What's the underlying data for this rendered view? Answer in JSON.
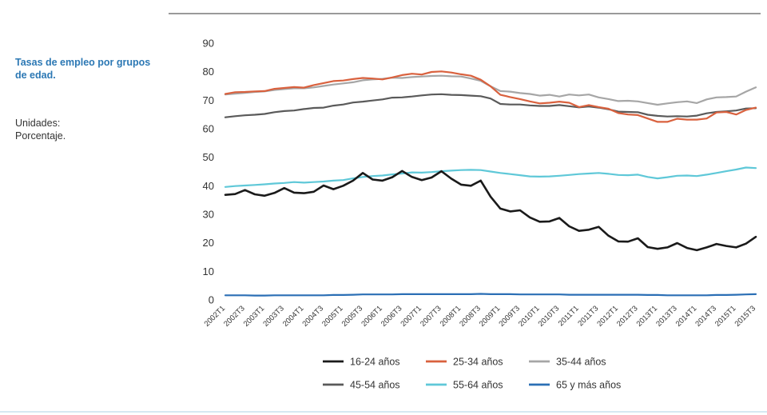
{
  "side": {
    "title": "Tasas de empleo por grupos de edad.",
    "units_label": "Unidades:",
    "units_value": "Porcentaje."
  },
  "chart_data": {
    "type": "line",
    "title": "",
    "xlabel": "",
    "ylabel": "",
    "ylim": [
      0,
      90
    ],
    "yticks": [
      0,
      10,
      20,
      30,
      40,
      50,
      60,
      70,
      80,
      90
    ],
    "grid": false,
    "legend_position": "bottom",
    "x": [
      "2002T1",
      "2002T2",
      "2002T3",
      "2002T4",
      "2003T1",
      "2003T2",
      "2003T3",
      "2003T4",
      "2004T1",
      "2004T2",
      "2004T3",
      "2004T4",
      "2005T1",
      "2005T2",
      "2005T3",
      "2005T4",
      "2006T1",
      "2006T2",
      "2006T3",
      "2006T4",
      "2007T1",
      "2007T2",
      "2007T3",
      "2007T4",
      "2008T1",
      "2008T2",
      "2008T3",
      "2008T4",
      "2009T1",
      "2009T2",
      "2009T3",
      "2009T4",
      "2010T1",
      "2010T2",
      "2010T3",
      "2010T4",
      "2011T1",
      "2011T2",
      "2011T3",
      "2011T4",
      "2012T1",
      "2012T2",
      "2012T3",
      "2012T4",
      "2013T1",
      "2013T2",
      "2013T3",
      "2013T4",
      "2014T1",
      "2014T2",
      "2014T3",
      "2014T4",
      "2015T1",
      "2015T2",
      "2015T3"
    ],
    "x_tick_labels": [
      "2002T1",
      "2002T3",
      "2003T1",
      "2003T3",
      "2004T1",
      "2004T3",
      "2005T1",
      "2005T3",
      "2006T1",
      "2006T3",
      "2007T1",
      "2007T3",
      "2008T1",
      "2008T3",
      "2009T1",
      "2009T3",
      "2010T1",
      "2010T3",
      "2011T1",
      "2011T3",
      "2012T1",
      "2012T3",
      "2013T1",
      "2013T3",
      "2014T1",
      "2014T3",
      "2015T1",
      "2015T3"
    ],
    "series": [
      {
        "name": "16-24 años",
        "color": "#1a1a1a",
        "values": [
          36.8,
          37.1,
          38.5,
          37.0,
          36.5,
          37.5,
          39.2,
          37.6,
          37.4,
          37.9,
          40.1,
          38.8,
          40.0,
          41.8,
          44.5,
          42.2,
          41.8,
          43.0,
          45.2,
          43.1,
          42.0,
          42.9,
          45.1,
          42.5,
          40.4,
          40.0,
          41.8,
          36.2,
          32.0,
          31.0,
          31.4,
          28.9,
          27.4,
          27.5,
          28.7,
          25.8,
          24.2,
          24.6,
          25.6,
          22.5,
          20.5,
          20.4,
          21.6,
          18.5,
          17.9,
          18.4,
          19.9,
          18.2,
          17.4,
          18.4,
          19.6,
          18.9,
          18.4,
          19.7,
          22.1
        ]
      },
      {
        "name": "25-34 años",
        "color": "#d9613e",
        "values": [
          72.2,
          72.8,
          72.9,
          73.1,
          73.2,
          74.0,
          74.3,
          74.6,
          74.4,
          75.3,
          76.0,
          76.7,
          76.9,
          77.4,
          77.8,
          77.6,
          77.3,
          78.0,
          78.8,
          79.3,
          79.0,
          79.9,
          80.1,
          79.7,
          79.1,
          78.6,
          77.2,
          74.9,
          71.9,
          71.1,
          70.4,
          69.6,
          68.9,
          69.1,
          69.5,
          69.1,
          67.6,
          68.3,
          67.6,
          67.0,
          65.5,
          65.0,
          64.8,
          63.6,
          62.4,
          62.4,
          63.5,
          63.2,
          63.2,
          63.6,
          65.7,
          65.9,
          65.0,
          66.6,
          67.4
        ]
      },
      {
        "name": "35-44 años",
        "color": "#a6a6a6",
        "values": [
          72.0,
          72.3,
          72.6,
          72.9,
          73.1,
          73.6,
          73.9,
          74.2,
          74.2,
          74.5,
          75.0,
          75.5,
          75.9,
          76.3,
          77.0,
          77.3,
          77.5,
          77.9,
          77.8,
          78.1,
          78.3,
          78.5,
          78.6,
          78.4,
          78.3,
          77.6,
          76.8,
          74.9,
          73.2,
          73.0,
          72.5,
          72.2,
          71.6,
          71.9,
          71.3,
          72.0,
          71.7,
          72.0,
          71.0,
          70.4,
          69.7,
          69.8,
          69.6,
          69.0,
          68.4,
          68.9,
          69.3,
          69.6,
          69.0,
          70.3,
          71.0,
          71.1,
          71.3,
          73.0,
          74.5
        ]
      },
      {
        "name": "45-54 años",
        "color": "#5a5a5a",
        "values": [
          64.0,
          64.4,
          64.7,
          64.9,
          65.2,
          65.8,
          66.2,
          66.4,
          66.9,
          67.3,
          67.4,
          68.1,
          68.5,
          69.2,
          69.5,
          69.9,
          70.3,
          70.9,
          71.0,
          71.3,
          71.7,
          72.0,
          72.1,
          71.9,
          71.8,
          71.6,
          71.4,
          70.6,
          68.7,
          68.5,
          68.5,
          68.2,
          68.0,
          68.0,
          68.3,
          67.9,
          67.5,
          67.8,
          67.4,
          66.8,
          66.0,
          65.9,
          65.8,
          64.9,
          64.5,
          64.3,
          64.4,
          64.3,
          64.6,
          65.4,
          65.9,
          66.1,
          66.4,
          67.1,
          67.2
        ]
      },
      {
        "name": "55-64 años",
        "color": "#5fc8d8",
        "values": [
          39.6,
          39.9,
          40.1,
          40.3,
          40.5,
          40.8,
          41.0,
          41.3,
          41.1,
          41.3,
          41.5,
          41.8,
          42.0,
          42.6,
          43.1,
          43.4,
          43.6,
          44.0,
          44.3,
          44.7,
          44.6,
          44.8,
          45.1,
          45.3,
          45.5,
          45.6,
          45.5,
          45.0,
          44.5,
          44.1,
          43.7,
          43.3,
          43.2,
          43.3,
          43.5,
          43.8,
          44.1,
          44.3,
          44.5,
          44.2,
          43.8,
          43.7,
          43.9,
          43.1,
          42.6,
          43.0,
          43.5,
          43.6,
          43.4,
          43.9,
          44.5,
          45.1,
          45.7,
          46.4,
          46.2
        ]
      },
      {
        "name": "65 y más años",
        "color": "#2b6fb5",
        "values": [
          1.6,
          1.6,
          1.6,
          1.5,
          1.5,
          1.6,
          1.6,
          1.6,
          1.6,
          1.6,
          1.6,
          1.7,
          1.7,
          1.8,
          1.9,
          1.9,
          1.9,
          1.9,
          2.0,
          2.0,
          2.0,
          2.0,
          2.0,
          2.0,
          2.0,
          2.0,
          2.1,
          2.0,
          2.0,
          2.0,
          1.9,
          1.9,
          1.9,
          1.9,
          1.9,
          1.8,
          1.8,
          1.8,
          1.8,
          1.8,
          1.8,
          1.8,
          1.8,
          1.7,
          1.7,
          1.6,
          1.6,
          1.6,
          1.6,
          1.6,
          1.7,
          1.7,
          1.8,
          1.9,
          2.0
        ]
      }
    ]
  }
}
